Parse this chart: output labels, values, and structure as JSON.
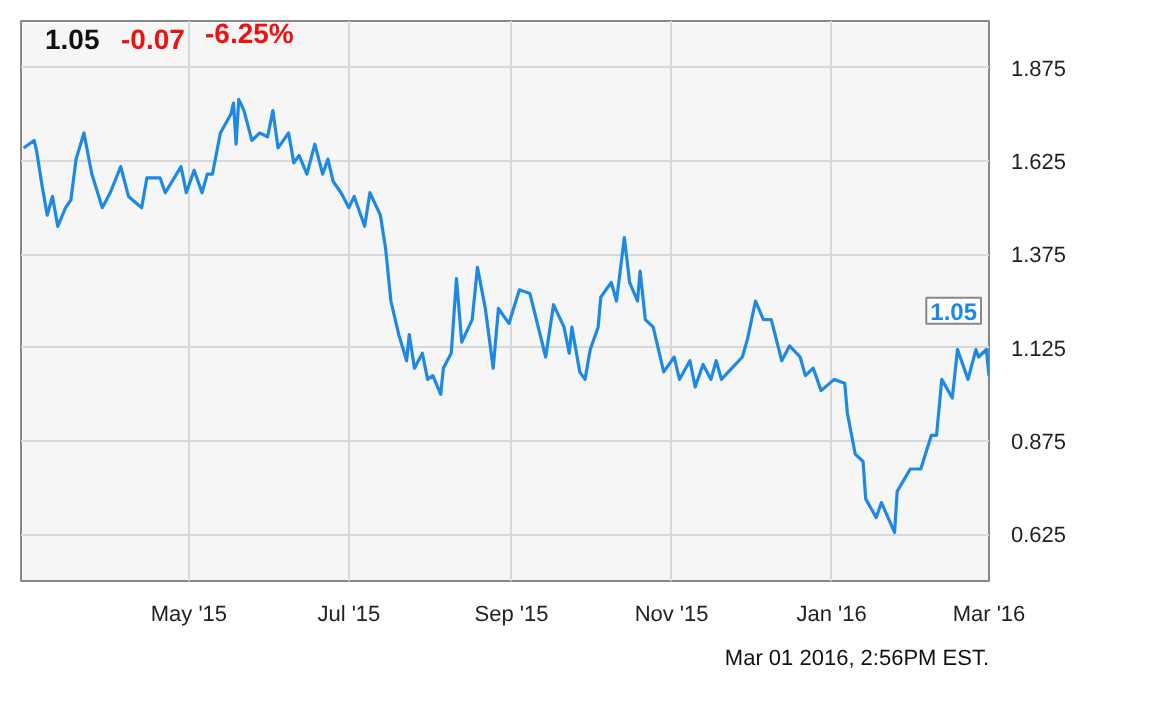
{
  "chart_data": {
    "type": "line",
    "title": "1.05",
    "annotations": [
      "-0.07",
      "-6.25%",
      "Mar 01 2016, 2:56PM EST.",
      {
        "text": "1.05",
        "x": "2016-03-01",
        "y": 1.05
      }
    ],
    "x": [
      "2015-02-27",
      "2015-03-03",
      "2015-03-04",
      "2015-03-06",
      "2015-03-08",
      "2015-03-10",
      "2015-03-12",
      "2015-03-15",
      "2015-03-17",
      "2015-03-19",
      "2015-03-22",
      "2015-03-25",
      "2015-03-29",
      "2015-04-01",
      "2015-04-05",
      "2015-04-08",
      "2015-04-13",
      "2015-04-15",
      "2015-04-20",
      "2015-04-22",
      "2015-04-28",
      "2015-04-30",
      "2015-05-03",
      "2015-05-06",
      "2015-05-08",
      "2015-05-10",
      "2015-05-13",
      "2015-05-17",
      "2015-05-18",
      "2015-05-19",
      "2015-05-20",
      "2015-05-22",
      "2015-05-25",
      "2015-05-28",
      "2015-05-31",
      "2015-06-02",
      "2015-06-04",
      "2015-06-08",
      "2015-06-10",
      "2015-06-12",
      "2015-06-15",
      "2015-06-18",
      "2015-06-21",
      "2015-06-23",
      "2015-06-25",
      "2015-06-28",
      "2015-07-01",
      "2015-07-03",
      "2015-07-07",
      "2015-07-09",
      "2015-07-13",
      "2015-07-15",
      "2015-07-17",
      "2015-07-20",
      "2015-07-23",
      "2015-07-24",
      "2015-07-26",
      "2015-07-29",
      "2015-07-31",
      "2015-08-02",
      "2015-08-05",
      "2015-08-06",
      "2015-08-09",
      "2015-08-11",
      "2015-08-13",
      "2015-08-17",
      "2015-08-19",
      "2015-08-22",
      "2015-08-25",
      "2015-08-27",
      "2015-08-31",
      "2015-09-04",
      "2015-09-08",
      "2015-09-14",
      "2015-09-17",
      "2015-09-21",
      "2015-09-23",
      "2015-09-24",
      "2015-09-27",
      "2015-09-29",
      "2015-10-01",
      "2015-10-04",
      "2015-10-05",
      "2015-10-09",
      "2015-10-11",
      "2015-10-14",
      "2015-10-16",
      "2015-10-19",
      "2015-10-20",
      "2015-10-22",
      "2015-10-25",
      "2015-10-29",
      "2015-11-02",
      "2015-11-04",
      "2015-11-08",
      "2015-11-10",
      "2015-11-13",
      "2015-11-16",
      "2015-11-18",
      "2015-11-20",
      "2015-11-24",
      "2015-11-28",
      "2015-11-30",
      "2015-12-03",
      "2015-12-06",
      "2015-12-09",
      "2015-12-13",
      "2015-12-16",
      "2015-12-20",
      "2015-12-22",
      "2015-12-25",
      "2015-12-28",
      "2016-01-02",
      "2016-01-06",
      "2016-01-07",
      "2016-01-10",
      "2016-01-13",
      "2016-01-14",
      "2016-01-18",
      "2016-01-20",
      "2016-01-25",
      "2016-01-26",
      "2016-01-31",
      "2016-02-04",
      "2016-02-08",
      "2016-02-10",
      "2016-02-12",
      "2016-02-16",
      "2016-02-18",
      "2016-02-22",
      "2016-02-25",
      "2016-02-26",
      "2016-02-29",
      "2016-03-01"
    ],
    "series": [
      {
        "color": "#1e88e5",
        "values": [
          1.66,
          1.68,
          1.65,
          1.56,
          1.48,
          1.53,
          1.45,
          1.5,
          1.52,
          1.63,
          1.7,
          1.59,
          1.5,
          1.54,
          1.61,
          1.53,
          1.5,
          1.58,
          1.58,
          1.54,
          1.61,
          1.54,
          1.6,
          1.54,
          1.59,
          1.59,
          1.7,
          1.75,
          1.78,
          1.67,
          1.79,
          1.76,
          1.68,
          1.7,
          1.69,
          1.76,
          1.66,
          1.7,
          1.62,
          1.64,
          1.59,
          1.67,
          1.59,
          1.63,
          1.57,
          1.54,
          1.5,
          1.53,
          1.45,
          1.54,
          1.48,
          1.39,
          1.25,
          1.16,
          1.09,
          1.16,
          1.07,
          1.11,
          1.04,
          1.05,
          1.0,
          1.07,
          1.11,
          1.31,
          1.14,
          1.2,
          1.34,
          1.23,
          1.07,
          1.23,
          1.19,
          1.28,
          1.27,
          1.1,
          1.24,
          1.18,
          1.11,
          1.18,
          1.06,
          1.04,
          1.12,
          1.18,
          1.26,
          1.3,
          1.25,
          1.42,
          1.3,
          1.25,
          1.33,
          1.2,
          1.18,
          1.06,
          1.1,
          1.04,
          1.09,
          1.02,
          1.08,
          1.04,
          1.09,
          1.04,
          1.07,
          1.1,
          1.15,
          1.25,
          1.2,
          1.2,
          1.09,
          1.13,
          1.1,
          1.05,
          1.07,
          1.01,
          1.04,
          1.03,
          0.95,
          0.84,
          0.82,
          0.72,
          0.67,
          0.71,
          0.63,
          0.74,
          0.8,
          0.8,
          0.89,
          0.89,
          1.04,
          0.99,
          1.12,
          1.04,
          1.12,
          1.1,
          1.12,
          1.05
        ]
      }
    ],
    "xlim": [
      "2015-02-26",
      "2016-03-01"
    ],
    "xticks": [
      {
        "value": "2015-05-01",
        "label": "May '15"
      },
      {
        "value": "2015-07-01",
        "label": "Jul '15"
      },
      {
        "value": "2015-09-01",
        "label": "Sep '15"
      },
      {
        "value": "2015-11-01",
        "label": "Nov '15"
      },
      {
        "value": "2016-01-01",
        "label": "Jan '16"
      },
      {
        "value": "2016-03-01",
        "label": "Mar '16"
      }
    ],
    "ylim": [
      0.5,
      2.0
    ],
    "yticks": [
      0.625,
      0.875,
      1.125,
      1.375,
      1.625,
      1.875
    ],
    "grid": true,
    "marker": "none",
    "line_style": "solid"
  }
}
